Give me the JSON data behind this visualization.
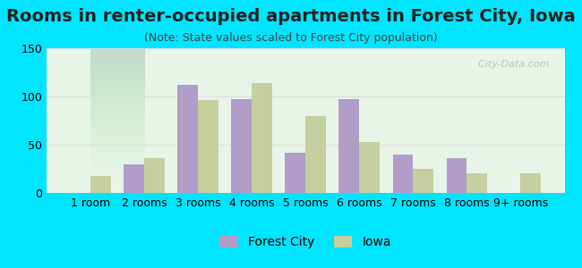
{
  "title": "Rooms in renter-occupied apartments in Forest City, Iowa",
  "subtitle": "(Note: State values scaled to Forest City population)",
  "categories": [
    "1 room",
    "2 rooms",
    "3 rooms",
    "4 rooms",
    "5 rooms",
    "6 rooms",
    "7 rooms",
    "8 rooms",
    "9+ rooms"
  ],
  "forest_city": [
    0,
    30,
    112,
    97,
    42,
    97,
    40,
    36,
    0
  ],
  "iowa": [
    18,
    36,
    96,
    114,
    80,
    53,
    25,
    20,
    20
  ],
  "forest_city_color": "#b09ec9",
  "iowa_color": "#c5cf9f",
  "ylim": [
    0,
    150
  ],
  "yticks": [
    0,
    50,
    100,
    150
  ],
  "bar_width": 0.38,
  "background_color": "#00e5ff",
  "plot_bg_gradient_top": "#e8f5e8",
  "plot_bg_gradient_bottom": "#ffffff",
  "grid_color": "#dddddd",
  "title_fontsize": 14,
  "subtitle_fontsize": 9,
  "tick_fontsize": 9,
  "legend_fontsize": 10
}
